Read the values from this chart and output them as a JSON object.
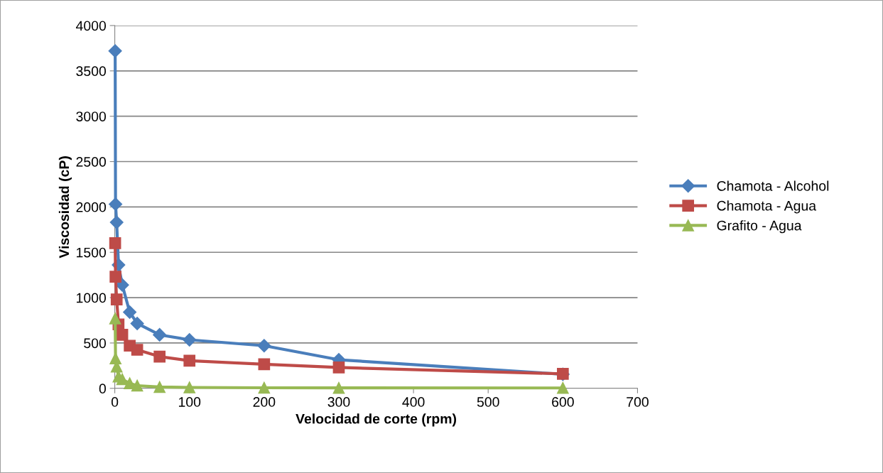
{
  "chart_data": {
    "type": "line",
    "xlabel": "Velocidad de corte (rpm)",
    "ylabel": "Viscosidad (cP)",
    "x": [
      0.5,
      1,
      2.5,
      5,
      10,
      20,
      30,
      60,
      100,
      200,
      300,
      600
    ],
    "series": [
      {
        "name": "Chamota - Alcohol",
        "color": "#4a7ebb",
        "marker": "diamond",
        "values": [
          3720,
          2030,
          1830,
          1360,
          1140,
          840,
          715,
          590,
          535,
          470,
          315,
          155
        ]
      },
      {
        "name": "Chamota - Agua",
        "color": "#be4b48",
        "marker": "square",
        "values": [
          1600,
          1230,
          980,
          705,
          590,
          470,
          425,
          350,
          305,
          265,
          230,
          160
        ]
      },
      {
        "name": "Grafito - Agua",
        "color": "#98b954",
        "marker": "triangle",
        "values": [
          770,
          330,
          240,
          130,
          100,
          55,
          30,
          15,
          10,
          6,
          5,
          4
        ]
      }
    ],
    "xlim": [
      0,
      700
    ],
    "xticks": [
      0,
      100,
      200,
      300,
      400,
      500,
      600,
      700
    ],
    "ylim": [
      0,
      4000
    ],
    "yticks": [
      0,
      500,
      1000,
      1500,
      2000,
      2500,
      3000,
      3500,
      4000
    ],
    "grid": "y",
    "legend": "right",
    "line_style": "solid"
  }
}
